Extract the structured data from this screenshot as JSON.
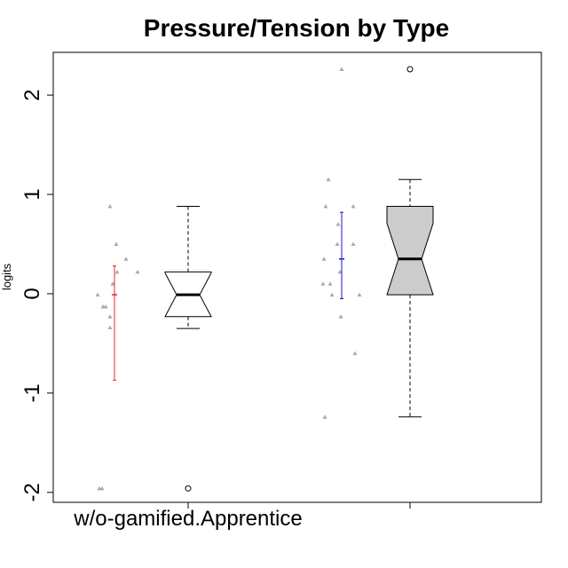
{
  "chart_data": {
    "type": "box",
    "title": "Pressure/Tension by Type",
    "xlabel": "",
    "ylabel": "logits",
    "ylim": [
      -2.1,
      2.43
    ],
    "y_ticks": [
      -2,
      -1,
      0,
      1,
      2
    ],
    "y_tick_labels": [
      "-2",
      "-1",
      "0",
      "1",
      "2"
    ],
    "x_tick_labels": [
      "w/o-gamified.Apprentice",
      ""
    ],
    "groups": [
      {
        "label": "w/o-gamified.Apprentice",
        "box": {
          "min": -0.35,
          "q1": -0.23,
          "median": -0.01,
          "q3": 0.22,
          "max": 0.88,
          "notch_low": -0.23,
          "notch_high": 0.21,
          "outliers": [
            -1.96
          ]
        },
        "box_fill": "#ffffff",
        "mean_ci": {
          "mean": -0.01,
          "low": -0.87,
          "high": 0.28,
          "color": "#e8202a"
        },
        "points": [
          0.88,
          0.5,
          0.35,
          0.22,
          0.22,
          0.1,
          -0.01,
          -0.13,
          -0.13,
          -0.23,
          -0.34,
          -1.96,
          -1.96
        ]
      },
      {
        "label": "",
        "box": {
          "min": -1.24,
          "q1": -0.01,
          "median": 0.35,
          "q3": 0.88,
          "max": 1.15,
          "notch_low": -0.01,
          "notch_high": 0.71,
          "outliers": [
            2.26
          ]
        },
        "box_fill": "#cccccc",
        "mean_ci": {
          "mean": 0.35,
          "low": -0.05,
          "high": 0.82,
          "color": "#1a1acf"
        },
        "points": [
          2.26,
          1.15,
          0.88,
          0.88,
          0.7,
          0.5,
          0.5,
          0.35,
          0.22,
          0.1,
          0.1,
          -0.01,
          -0.01,
          -0.23,
          -0.6,
          -1.24
        ]
      }
    ],
    "colors": {
      "points": "#aaaaaa",
      "axis": "#000000"
    }
  }
}
